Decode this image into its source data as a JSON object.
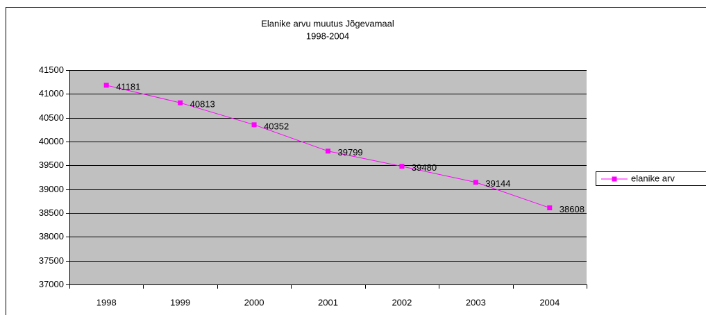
{
  "chart_data": {
    "type": "line",
    "title": "Elanike arvu muutus Jõgevamaal",
    "subtitle": "1998-2004",
    "categories": [
      "1998",
      "1999",
      "2000",
      "2001",
      "2002",
      "2003",
      "2004"
    ],
    "series": [
      {
        "name": "elanike arv",
        "color": "#ff00ff",
        "values": [
          41181,
          40813,
          40352,
          39799,
          39480,
          39144,
          38608
        ]
      }
    ],
    "ylim": [
      37000,
      41500
    ],
    "yticks": [
      37000,
      37500,
      38000,
      38500,
      39000,
      39500,
      40000,
      40500,
      41000,
      41500
    ],
    "grid": true,
    "plot_background": "#c0c0c0",
    "legend": "right"
  }
}
